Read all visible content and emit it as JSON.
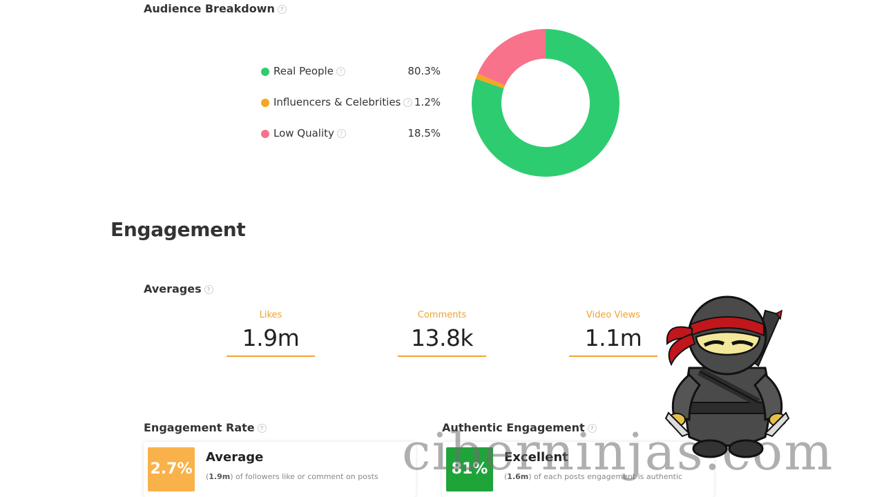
{
  "audience": {
    "title": "Audience Breakdown",
    "legend": [
      {
        "label": "Real People",
        "value": "80.3%",
        "color": "#2ecc71"
      },
      {
        "label": "Influencers & Celebrities",
        "value": "1.2%",
        "color": "#f5a623"
      },
      {
        "label": "Low Quality",
        "value": "18.5%",
        "color": "#f7728a"
      }
    ],
    "donut": [
      {
        "name": "Real People",
        "value": 80.3,
        "color": "#2ecc71"
      },
      {
        "name": "Influencers & Celebrities",
        "value": 1.2,
        "color": "#f5a623"
      },
      {
        "name": "Low Quality",
        "value": 18.5,
        "color": "#f7728a"
      }
    ]
  },
  "engagement": {
    "title": "Engagement",
    "averages_title": "Averages",
    "averages": [
      {
        "label": "Likes",
        "value": "1.9m"
      },
      {
        "label": "Comments",
        "value": "13.8k"
      },
      {
        "label": "Video Views",
        "value": "1.1m"
      }
    ],
    "rate": {
      "title": "Engagement Rate",
      "badge": "2.7%",
      "badge_color": "#f9b24a",
      "status": "Average",
      "desc_prefix": "(",
      "desc_bold": "1.9m",
      "desc_suffix": ") of followers like or comment on posts"
    },
    "authentic": {
      "title": "Authentic Engagement",
      "badge": "81%",
      "badge_color": "#1fa43a",
      "status": "Excellent",
      "desc_prefix": "(",
      "desc_bold": "1.6m",
      "desc_suffix": ") of each posts engagement is authentic"
    }
  },
  "watermark": {
    "text": "ciberninjas.com"
  },
  "icons": {
    "help": "question-circle-icon",
    "mascot": "ninja-mascot-icon"
  }
}
